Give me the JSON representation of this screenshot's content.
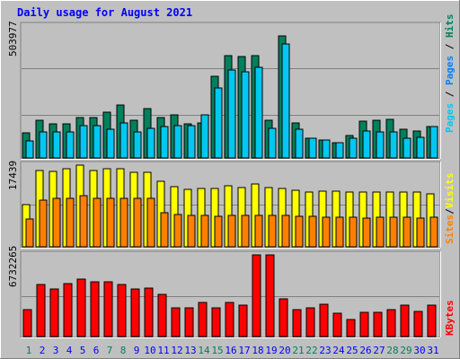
{
  "title": "Daily usage for August 2021",
  "colors": {
    "background": "#c0c0c0",
    "panel": "#c0c0c0",
    "title": "#0000ff",
    "hits": "#00805c",
    "files": "#0080ff",
    "pages": "#00c8f0",
    "visits": "#ffff00",
    "sites": "#ff8000",
    "kbytes": "#ff0000",
    "weekend_label": "#00805c",
    "weekday_label": "#0000ff"
  },
  "chart_data": [
    {
      "type": "bar",
      "name": "hits-files-pages",
      "scale_max": 503977,
      "ymax_label": "503977",
      "legend": [
        "Pages",
        "Files",
        "Hits"
      ],
      "categories": [
        "1",
        "2",
        "3",
        "4",
        "5",
        "6",
        "7",
        "8",
        "9",
        "10",
        "11",
        "12",
        "13",
        "14",
        "15",
        "16",
        "17",
        "18",
        "19",
        "20",
        "21",
        "22",
        "23",
        "24",
        "25",
        "26",
        "27",
        "28",
        "29",
        "30",
        "31"
      ],
      "series": [
        {
          "name": "Hits",
          "values": [
            95000,
            145000,
            130000,
            130000,
            155000,
            155000,
            175000,
            205000,
            145000,
            190000,
            155000,
            165000,
            130000,
            135000,
            315000,
            395000,
            390000,
            395000,
            145000,
            470000,
            135000,
            75000,
            70000,
            60000,
            85000,
            140000,
            145000,
            150000,
            110000,
            105000,
            120000
          ]
        },
        {
          "name": "Pages",
          "values": [
            65000,
            100000,
            100000,
            100000,
            125000,
            125000,
            110000,
            135000,
            100000,
            115000,
            120000,
            125000,
            125000,
            165000,
            270000,
            340000,
            330000,
            350000,
            115000,
            440000,
            110000,
            75000,
            70000,
            60000,
            75000,
            105000,
            100000,
            100000,
            75000,
            80000,
            120000
          ]
        }
      ]
    },
    {
      "type": "bar",
      "name": "visits-sites",
      "scale_max": 17439,
      "ymax_label": "17439",
      "legend": [
        "Sites",
        "/",
        "Visits"
      ],
      "categories": [
        "1",
        "2",
        "3",
        "4",
        "5",
        "6",
        "7",
        "8",
        "9",
        "10",
        "11",
        "12",
        "13",
        "14",
        "15",
        "16",
        "17",
        "18",
        "19",
        "20",
        "21",
        "22",
        "23",
        "24",
        "25",
        "26",
        "27",
        "28",
        "29",
        "30",
        "31"
      ],
      "series": [
        {
          "name": "Visits",
          "values": [
            9000,
            16200,
            16100,
            16600,
            17400,
            16200,
            16600,
            16600,
            15900,
            15900,
            14000,
            12800,
            12300,
            12400,
            12400,
            13000,
            12700,
            13400,
            12700,
            12400,
            12100,
            11700,
            11800,
            11800,
            11700,
            11600,
            11700,
            11600,
            11600,
            11700,
            11400
          ]
        },
        {
          "name": "Sites",
          "values": [
            5900,
            10000,
            10400,
            10300,
            11000,
            10300,
            10400,
            10300,
            10400,
            10300,
            7200,
            6900,
            6700,
            6800,
            6500,
            6800,
            6700,
            6700,
            6800,
            6700,
            6500,
            6500,
            6300,
            6300,
            6300,
            6200,
            6400,
            6300,
            6300,
            6200,
            6300
          ]
        }
      ]
    },
    {
      "type": "bar",
      "name": "kbytes",
      "scale_max": 6732265,
      "ymax_label": "6732265",
      "legend": [
        "KBytes"
      ],
      "categories": [
        "1",
        "2",
        "3",
        "4",
        "5",
        "6",
        "7",
        "8",
        "9",
        "10",
        "11",
        "12",
        "13",
        "14",
        "15",
        "16",
        "17",
        "18",
        "19",
        "20",
        "21",
        "22",
        "23",
        "24",
        "25",
        "26",
        "27",
        "28",
        "29",
        "30",
        "31"
      ],
      "series": [
        {
          "name": "KBytes",
          "values": [
            2200000,
            4300000,
            3900000,
            4400000,
            4700000,
            4500000,
            4500000,
            4300000,
            3900000,
            4000000,
            3500000,
            2400000,
            2400000,
            2800000,
            2400000,
            2800000,
            2600000,
            6900000,
            6700000,
            3100000,
            2200000,
            2400000,
            2700000,
            1900000,
            1400000,
            2000000,
            2000000,
            2200000,
            2600000,
            2100000,
            2600000
          ]
        }
      ]
    }
  ],
  "x_axis": {
    "labels": [
      "1",
      "2",
      "3",
      "4",
      "5",
      "6",
      "7",
      "8",
      "9",
      "10",
      "11",
      "12",
      "13",
      "14",
      "15",
      "16",
      "17",
      "18",
      "19",
      "20",
      "21",
      "22",
      "23",
      "24",
      "25",
      "26",
      "27",
      "28",
      "29",
      "30",
      "31"
    ],
    "weekend": [
      1,
      7,
      8,
      14,
      15,
      21,
      22,
      28,
      29
    ]
  }
}
